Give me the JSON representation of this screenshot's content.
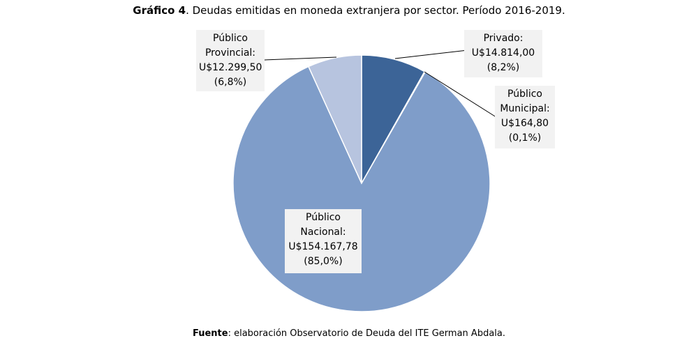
{
  "title_prefix": "Gráfico 4",
  "title_rest": ". Deudas emitidas en moneda extranjera por sector. Período 2016-2019.",
  "source_prefix": "Fuente",
  "source_rest": ": elaboración Observatorio de Deuda del ITE German Abdala.",
  "chart_data": {
    "type": "pie",
    "title": "Gráfico 4. Deudas emitidas en moneda extranjera por sector. Período 2016-2019.",
    "slices": [
      {
        "name": "Privado",
        "value": 14814.0,
        "value_label": "U$14.814,00",
        "pct_label": "(8,2%)",
        "color": "#3c6497",
        "label_lines": [
          "Privado:",
          "U$14.814,00",
          "(8,2%)"
        ]
      },
      {
        "name": "Público Municipal",
        "value": 164.8,
        "value_label": "U$164,80",
        "pct_label": "(0,1%)",
        "color": "#4f78b0",
        "label_lines": [
          "Público",
          "Municipal:",
          "U$164,80",
          "(0,1%)"
        ]
      },
      {
        "name": "Público Nacional",
        "value": 154167.78,
        "value_label": "U$154.167,78",
        "pct_label": "(85,0%)",
        "color": "#7f9dc9",
        "label_lines": [
          "Público",
          "Nacional:",
          "U$154.167,78",
          "(85,0%)"
        ]
      },
      {
        "name": "Público Provincial",
        "value": 12299.5,
        "value_label": "U$12.299,50",
        "pct_label": "(6,8%)",
        "color": "#b7c4df",
        "label_lines": [
          "Público",
          "Provincial:",
          "U$12.299,50",
          "(6,8%)"
        ]
      }
    ]
  }
}
